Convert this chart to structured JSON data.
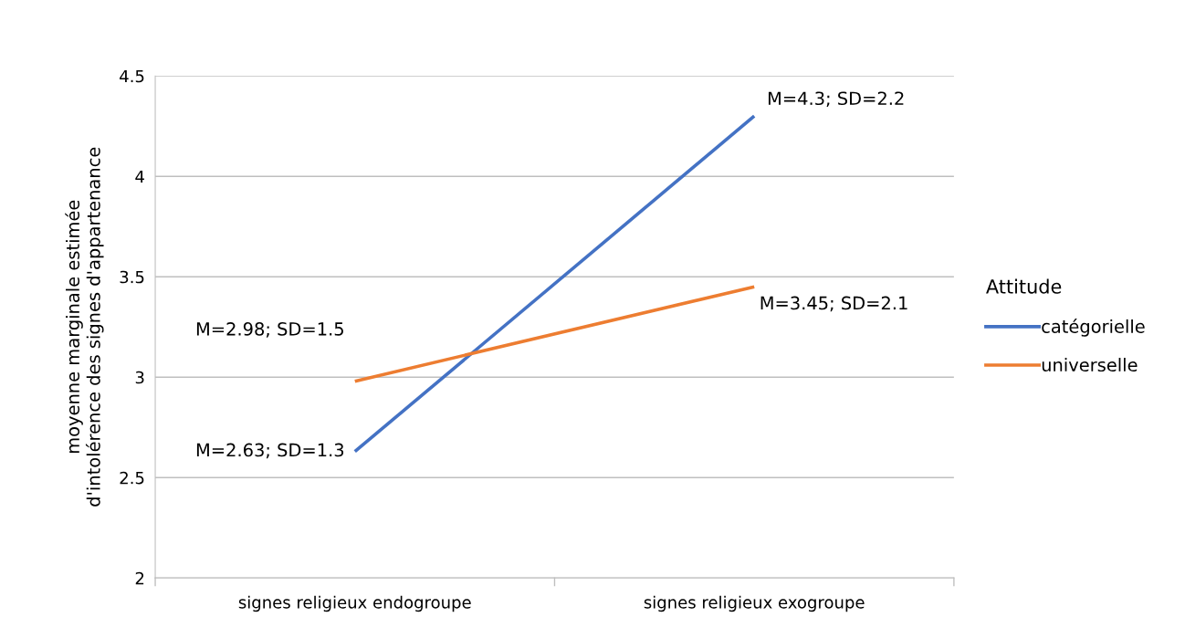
{
  "chart_data": {
    "type": "line",
    "ylabel": "moyenne marginale estimée\nd'intolérence des signes d'appartenance",
    "legend_title": "Attitude",
    "categories": [
      "signes religieux endogroupe",
      "signes religieux exogroupe"
    ],
    "series": [
      {
        "name": "catégorielle",
        "color": "#4472c4",
        "values": [
          2.63,
          4.3
        ],
        "value_labels": [
          "M=2.63; SD=1.3",
          "M=4.3; SD=2.2"
        ]
      },
      {
        "name": "universelle",
        "color": "#ed7d31",
        "values": [
          2.98,
          3.45
        ],
        "value_labels": [
          "M=2.98; SD=1.5",
          "M=3.45; SD=2.1"
        ]
      }
    ],
    "ylim": [
      2,
      4.5
    ],
    "yticks": [
      2,
      2.5,
      3,
      3.5,
      4,
      4.5
    ],
    "grid": "y",
    "legend": "right",
    "marker": "none",
    "line_style": "solid"
  }
}
